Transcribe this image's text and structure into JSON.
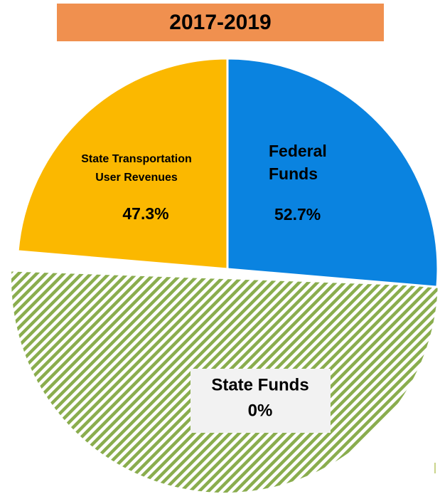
{
  "chart_data": {
    "type": "pie",
    "title": "2017-2019",
    "categories": [
      "Federal Funds",
      "State Transportation User Revenues",
      "State Funds"
    ],
    "values": [
      52.7,
      47.3,
      0
    ],
    "value_labels": [
      "52.7%",
      "47.3%",
      "0%"
    ],
    "colors": [
      "#0a83e0",
      "#fbb800",
      "#8aad4e"
    ]
  }
}
